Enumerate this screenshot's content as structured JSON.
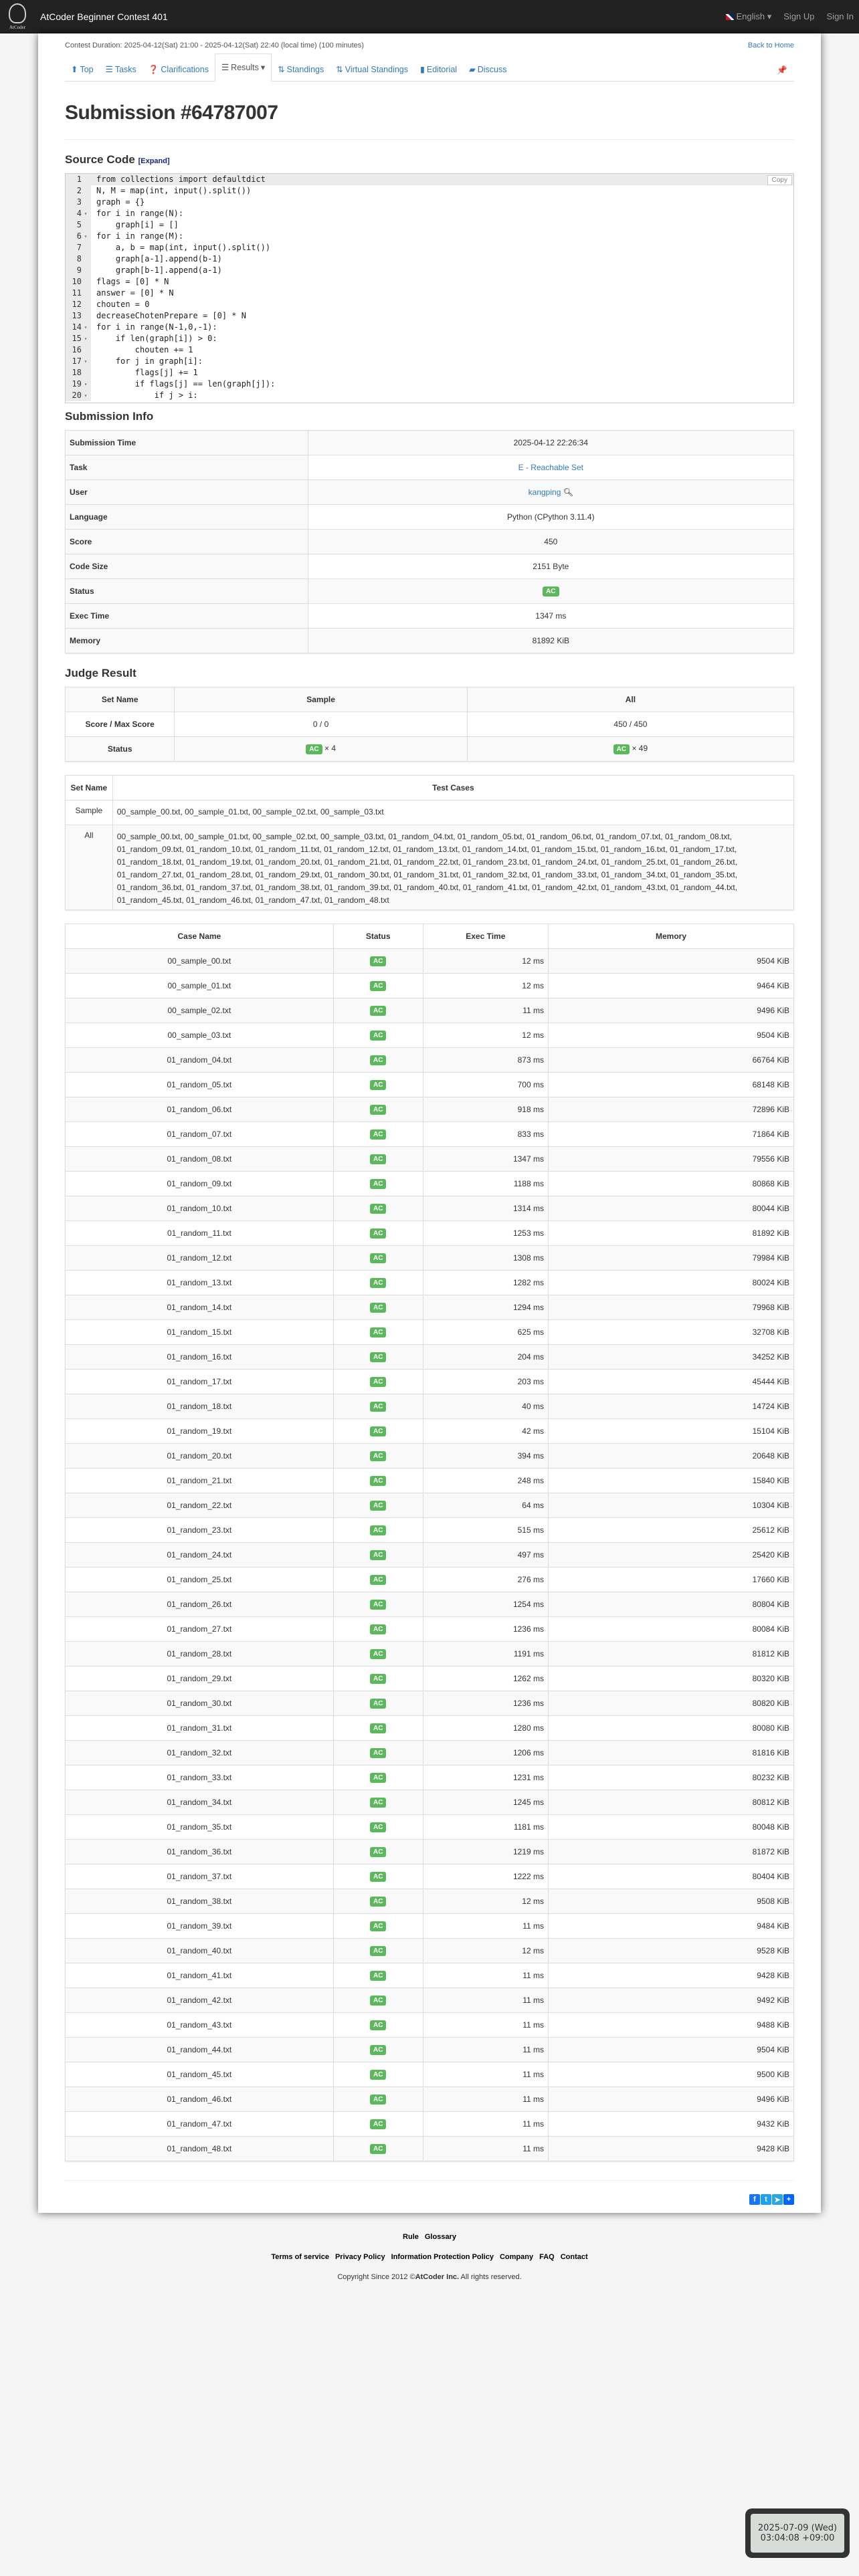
{
  "header": {
    "brand": "AtCoder Beginner Contest 401",
    "logo_text": "AtCoder",
    "language": "English",
    "signup": "Sign Up",
    "signin": "Sign In"
  },
  "contest": {
    "duration": "Contest Duration: 2025-04-12(Sat) 21:00 - 2025-04-12(Sat) 22:40 (local time) (100 minutes)",
    "back_home": "Back to Home"
  },
  "tabs": [
    {
      "label": "Top",
      "icon": "home-icon"
    },
    {
      "label": "Tasks",
      "icon": "tasks-icon"
    },
    {
      "label": "Clarifications",
      "icon": "question-icon"
    },
    {
      "label": "Results",
      "icon": "list-icon"
    },
    {
      "label": "Standings",
      "icon": "sort-icon"
    },
    {
      "label": "Virtual Standings",
      "icon": "sort-icon"
    },
    {
      "label": "Editorial",
      "icon": "book-icon"
    },
    {
      "label": "Discuss",
      "icon": "comment-icon"
    }
  ],
  "title": "Submission #64787007",
  "source": {
    "heading": "Source Code",
    "expand": "[Expand]",
    "copy": "Copy",
    "lines": [
      "from collections import defaultdict",
      "N, M = map(int, input().split())",
      "graph = {}",
      "for i in range(N):",
      "    graph[i] = []",
      "for i in range(M):",
      "    a, b = map(int, input().split())",
      "    graph[a-1].append(b-1)",
      "    graph[b-1].append(a-1)",
      "flags = [0] * N",
      "answer = [0] * N",
      "chouten = 0",
      "decreaseChotenPrepare = [0] * N",
      "for i in range(N-1,0,-1):",
      "    if len(graph[i]) > 0:",
      "        chouten += 1",
      "    for j in graph[i]:",
      "        flags[j] += 1",
      "        if flags[j] == len(graph[j]):",
      "            if j > i:"
    ],
    "fold_lines": [
      4,
      6,
      14,
      15,
      17,
      19,
      20
    ]
  },
  "info": {
    "heading": "Submission Info",
    "rows": [
      {
        "label": "Submission Time",
        "value": "2025-04-12 22:26:34"
      },
      {
        "label": "Task",
        "value": "E - Reachable Set",
        "link": true
      },
      {
        "label": "User",
        "value": "kangping",
        "link": true,
        "search": true
      },
      {
        "label": "Language",
        "value": "Python (CPython 3.11.4)"
      },
      {
        "label": "Score",
        "value": "450"
      },
      {
        "label": "Code Size",
        "value": "2151 Byte"
      },
      {
        "label": "Status",
        "value": "AC",
        "badge": true
      },
      {
        "label": "Exec Time",
        "value": "1347 ms"
      },
      {
        "label": "Memory",
        "value": "81892 KiB"
      }
    ]
  },
  "judge": {
    "heading": "Judge Result",
    "set_name": "Set Name",
    "score_label": "Score / Max Score",
    "status_label": "Status",
    "sets": [
      {
        "name": "Sample",
        "score": "0 / 0",
        "status": "AC",
        "count": "× 4"
      },
      {
        "name": "All",
        "score": "450 / 450",
        "status": "AC",
        "count": "× 49"
      }
    ],
    "test_cases_label": "Test Cases",
    "case_sets": [
      {
        "name": "Sample",
        "cases": "00_sample_00.txt, 00_sample_01.txt, 00_sample_02.txt, 00_sample_03.txt"
      },
      {
        "name": "All",
        "cases": "00_sample_00.txt, 00_sample_01.txt, 00_sample_02.txt, 00_sample_03.txt, 01_random_04.txt, 01_random_05.txt, 01_random_06.txt, 01_random_07.txt, 01_random_08.txt, 01_random_09.txt, 01_random_10.txt, 01_random_11.txt, 01_random_12.txt, 01_random_13.txt, 01_random_14.txt, 01_random_15.txt, 01_random_16.txt, 01_random_17.txt, 01_random_18.txt, 01_random_19.txt, 01_random_20.txt, 01_random_21.txt, 01_random_22.txt, 01_random_23.txt, 01_random_24.txt, 01_random_25.txt, 01_random_26.txt, 01_random_27.txt, 01_random_28.txt, 01_random_29.txt, 01_random_30.txt, 01_random_31.txt, 01_random_32.txt, 01_random_33.txt, 01_random_34.txt, 01_random_35.txt, 01_random_36.txt, 01_random_37.txt, 01_random_38.txt, 01_random_39.txt, 01_random_40.txt, 01_random_41.txt, 01_random_42.txt, 01_random_43.txt, 01_random_44.txt, 01_random_45.txt, 01_random_46.txt, 01_random_47.txt, 01_random_48.txt"
      }
    ]
  },
  "cases": {
    "columns": [
      "Case Name",
      "Status",
      "Exec Time",
      "Memory"
    ],
    "rows": [
      [
        "00_sample_00.txt",
        "AC",
        "12 ms",
        "9504 KiB"
      ],
      [
        "00_sample_01.txt",
        "AC",
        "12 ms",
        "9464 KiB"
      ],
      [
        "00_sample_02.txt",
        "AC",
        "11 ms",
        "9496 KiB"
      ],
      [
        "00_sample_03.txt",
        "AC",
        "12 ms",
        "9504 KiB"
      ],
      [
        "01_random_04.txt",
        "AC",
        "873 ms",
        "66764 KiB"
      ],
      [
        "01_random_05.txt",
        "AC",
        "700 ms",
        "68148 KiB"
      ],
      [
        "01_random_06.txt",
        "AC",
        "918 ms",
        "72896 KiB"
      ],
      [
        "01_random_07.txt",
        "AC",
        "833 ms",
        "71864 KiB"
      ],
      [
        "01_random_08.txt",
        "AC",
        "1347 ms",
        "79556 KiB"
      ],
      [
        "01_random_09.txt",
        "AC",
        "1188 ms",
        "80868 KiB"
      ],
      [
        "01_random_10.txt",
        "AC",
        "1314 ms",
        "80044 KiB"
      ],
      [
        "01_random_11.txt",
        "AC",
        "1253 ms",
        "81892 KiB"
      ],
      [
        "01_random_12.txt",
        "AC",
        "1308 ms",
        "79984 KiB"
      ],
      [
        "01_random_13.txt",
        "AC",
        "1282 ms",
        "80024 KiB"
      ],
      [
        "01_random_14.txt",
        "AC",
        "1294 ms",
        "79968 KiB"
      ],
      [
        "01_random_15.txt",
        "AC",
        "625 ms",
        "32708 KiB"
      ],
      [
        "01_random_16.txt",
        "AC",
        "204 ms",
        "34252 KiB"
      ],
      [
        "01_random_17.txt",
        "AC",
        "203 ms",
        "45444 KiB"
      ],
      [
        "01_random_18.txt",
        "AC",
        "40 ms",
        "14724 KiB"
      ],
      [
        "01_random_19.txt",
        "AC",
        "42 ms",
        "15104 KiB"
      ],
      [
        "01_random_20.txt",
        "AC",
        "394 ms",
        "20648 KiB"
      ],
      [
        "01_random_21.txt",
        "AC",
        "248 ms",
        "15840 KiB"
      ],
      [
        "01_random_22.txt",
        "AC",
        "64 ms",
        "10304 KiB"
      ],
      [
        "01_random_23.txt",
        "AC",
        "515 ms",
        "25612 KiB"
      ],
      [
        "01_random_24.txt",
        "AC",
        "497 ms",
        "25420 KiB"
      ],
      [
        "01_random_25.txt",
        "AC",
        "276 ms",
        "17660 KiB"
      ],
      [
        "01_random_26.txt",
        "AC",
        "1254 ms",
        "80804 KiB"
      ],
      [
        "01_random_27.txt",
        "AC",
        "1236 ms",
        "80084 KiB"
      ],
      [
        "01_random_28.txt",
        "AC",
        "1191 ms",
        "81812 KiB"
      ],
      [
        "01_random_29.txt",
        "AC",
        "1262 ms",
        "80320 KiB"
      ],
      [
        "01_random_30.txt",
        "AC",
        "1236 ms",
        "80820 KiB"
      ],
      [
        "01_random_31.txt",
        "AC",
        "1280 ms",
        "80080 KiB"
      ],
      [
        "01_random_32.txt",
        "AC",
        "1206 ms",
        "81816 KiB"
      ],
      [
        "01_random_33.txt",
        "AC",
        "1231 ms",
        "80232 KiB"
      ],
      [
        "01_random_34.txt",
        "AC",
        "1245 ms",
        "80812 KiB"
      ],
      [
        "01_random_35.txt",
        "AC",
        "1181 ms",
        "80048 KiB"
      ],
      [
        "01_random_36.txt",
        "AC",
        "1219 ms",
        "81872 KiB"
      ],
      [
        "01_random_37.txt",
        "AC",
        "1222 ms",
        "80404 KiB"
      ],
      [
        "01_random_38.txt",
        "AC",
        "12 ms",
        "9508 KiB"
      ],
      [
        "01_random_39.txt",
        "AC",
        "11 ms",
        "9484 KiB"
      ],
      [
        "01_random_40.txt",
        "AC",
        "12 ms",
        "9528 KiB"
      ],
      [
        "01_random_41.txt",
        "AC",
        "11 ms",
        "9428 KiB"
      ],
      [
        "01_random_42.txt",
        "AC",
        "11 ms",
        "9492 KiB"
      ],
      [
        "01_random_43.txt",
        "AC",
        "11 ms",
        "9488 KiB"
      ],
      [
        "01_random_44.txt",
        "AC",
        "11 ms",
        "9504 KiB"
      ],
      [
        "01_random_45.txt",
        "AC",
        "11 ms",
        "9500 KiB"
      ],
      [
        "01_random_46.txt",
        "AC",
        "11 ms",
        "9496 KiB"
      ],
      [
        "01_random_47.txt",
        "AC",
        "11 ms",
        "9432 KiB"
      ],
      [
        "01_random_48.txt",
        "AC",
        "11 ms",
        "9428 KiB"
      ]
    ]
  },
  "share": [
    {
      "icon": "facebook-icon",
      "glyph": "f",
      "color": "#1877f2"
    },
    {
      "icon": "twitter-icon",
      "glyph": "t",
      "color": "#1da1f2"
    },
    {
      "icon": "telegram-icon",
      "glyph": "➤",
      "color": "#2ca5e0"
    },
    {
      "icon": "share-plus-icon",
      "glyph": "+",
      "color": "#0166ff"
    }
  ],
  "footer": {
    "row1": [
      "Rule",
      "Glossary"
    ],
    "row2": [
      "Terms of service",
      "Privacy Policy",
      "Information Protection Policy",
      "Company",
      "FAQ",
      "Contact"
    ],
    "copyright_pre": "Copyright Since 2012 ©",
    "copyright_brand": "AtCoder Inc.",
    "copyright_post": " All rights reserved."
  },
  "clock": {
    "date": "2025-07-09 (Wed)",
    "time": "03:04:08 +09:00"
  },
  "colors": {
    "ac": "#5cb85c",
    "link": "#337ab7",
    "topbar": "#222222"
  }
}
